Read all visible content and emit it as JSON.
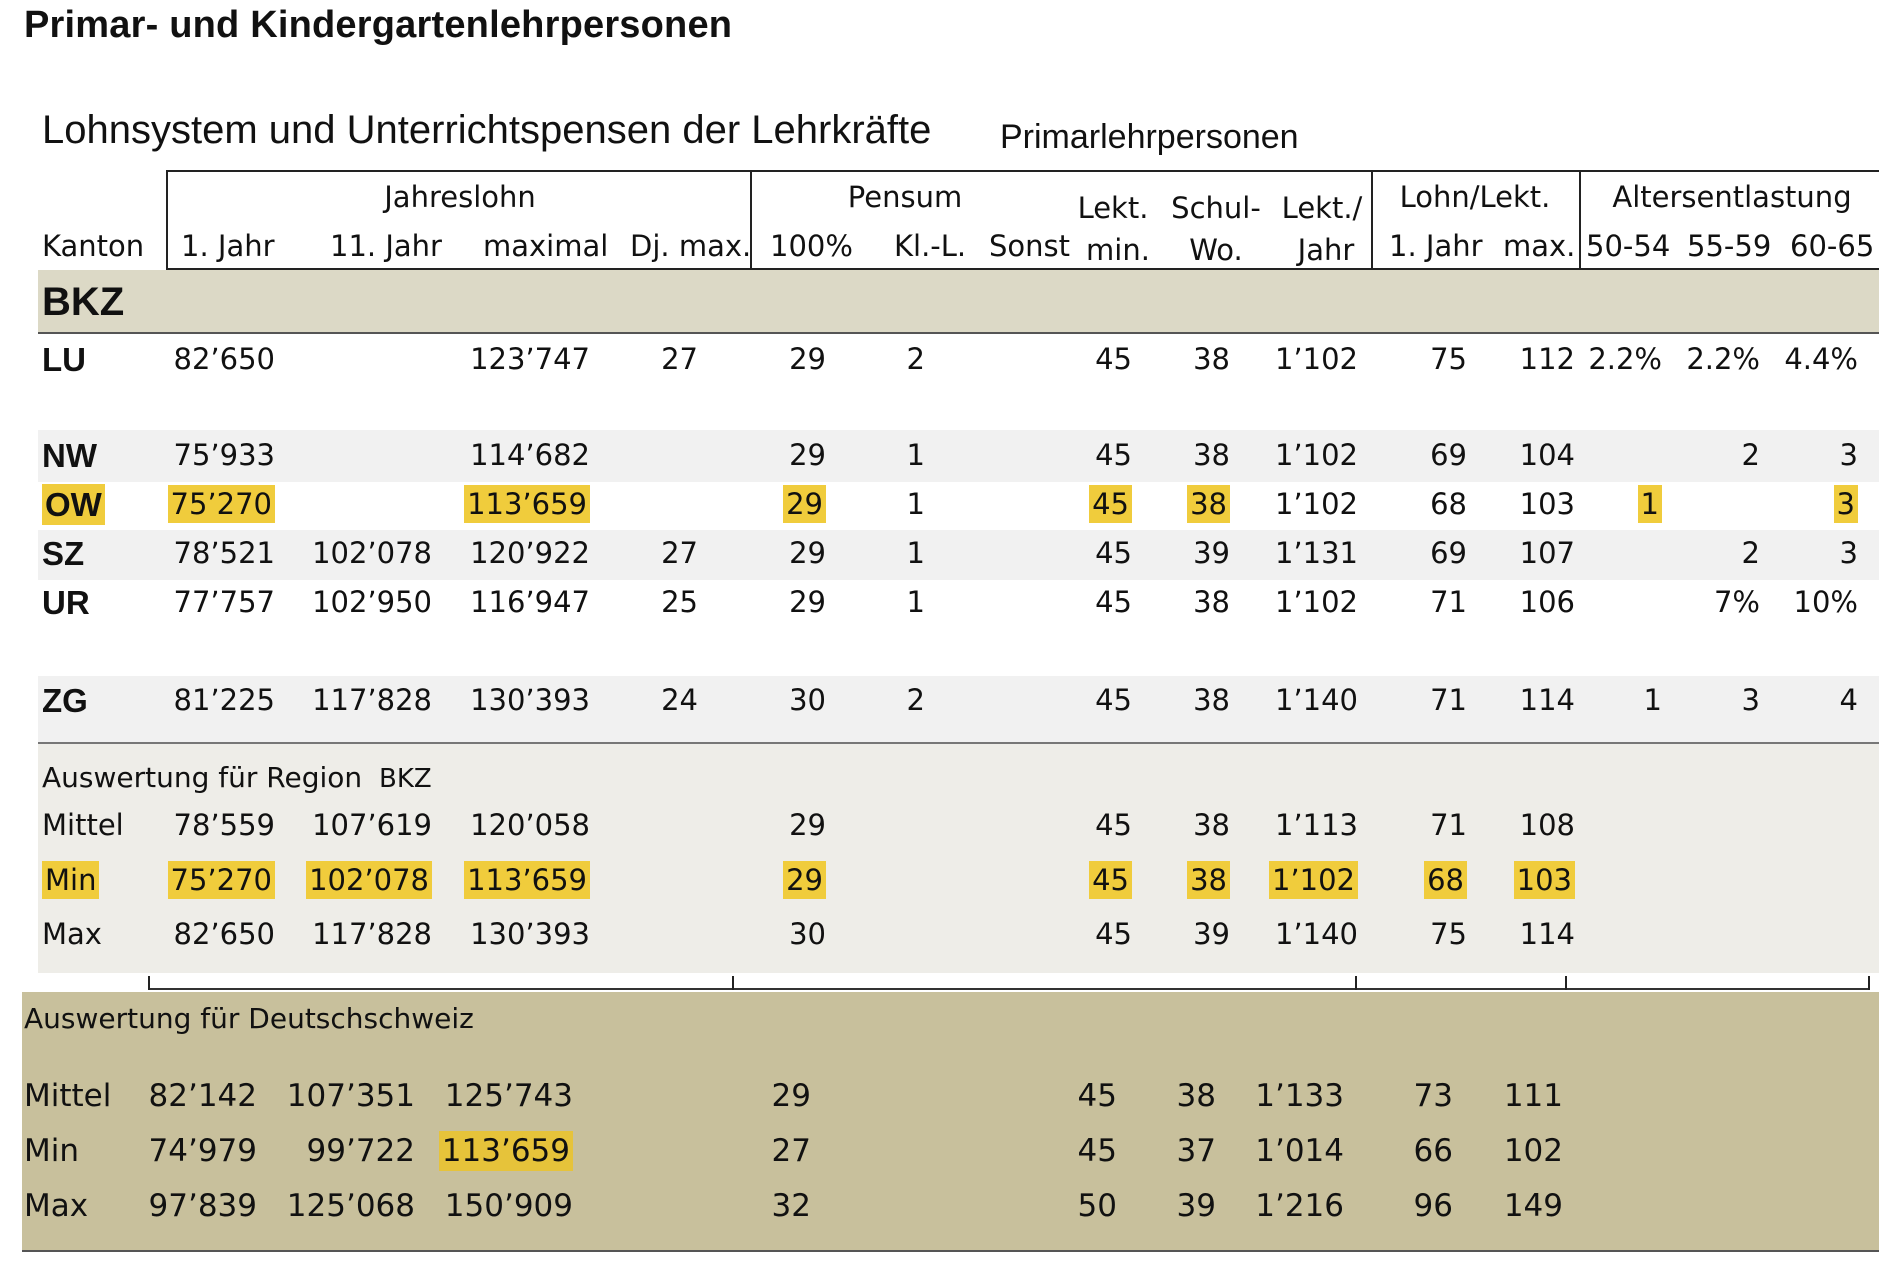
{
  "title": "Primar- und Kindergartenlehrpersonen",
  "subtitle": "Lohnsystem und Unterrichtspensen der Lehrkräfte",
  "subtitle2": "Primarlehrpersonen",
  "headers": {
    "group_jahreslohn": "Jahreslohn",
    "group_pensum": "Pensum",
    "group_lohn_lekt": "Lohn/Lekt.",
    "group_altersentlastung": "Altersentlastung",
    "kanton": "Kanton",
    "jahr1": "1. Jahr",
    "jahr11": "11. Jahr",
    "maximal": "maximal",
    "dj_max": "Dj. max.",
    "p100": "100%",
    "kl_l": "Kl.-L.",
    "sonst": "Sonst",
    "lekt_min_top": "Lekt.",
    "lekt_min_bottom": "min.",
    "schul_wo_top": "Schul-",
    "schul_wo_bottom": "Wo.",
    "lekt_jahr_top": "Lekt./",
    "lekt_jahr_bottom": "Jahr",
    "ll_jahr1": "1. Jahr",
    "ll_max": "max.",
    "a5054": "50-54",
    "a5559": "55-59",
    "a6065": "60-65"
  },
  "region_label": "BKZ",
  "rows": [
    {
      "kanton": "LU",
      "j1": "82’650",
      "j11": "",
      "max": "123’747",
      "dj": "27",
      "p100": "29",
      "kl": "2",
      "sonst": "",
      "lekt": "45",
      "wo": "38",
      "lj": "1’102",
      "l1": "75",
      "lmax": "112",
      "a1": "2.2%",
      "a2": "2.2%",
      "a3": "4.4%"
    },
    {
      "kanton": "NW",
      "j1": "75’933",
      "j11": "",
      "max": "114’682",
      "dj": "",
      "p100": "29",
      "kl": "1",
      "sonst": "",
      "lekt": "45",
      "wo": "38",
      "lj": "1’102",
      "l1": "69",
      "lmax": "104",
      "a1": "",
      "a2": "2",
      "a3": "3"
    },
    {
      "kanton": "OW",
      "j1": "75’270",
      "j11": "",
      "max": "113’659",
      "dj": "",
      "p100": "29",
      "kl": "1",
      "sonst": "",
      "lekt": "45",
      "wo": "38",
      "lj": "1’102",
      "l1": "68",
      "lmax": "103",
      "a1": "1",
      "a2": "",
      "a3": "3"
    },
    {
      "kanton": "SZ",
      "j1": "78’521",
      "j11": "102’078",
      "max": "120’922",
      "dj": "27",
      "p100": "29",
      "kl": "1",
      "sonst": "",
      "lekt": "45",
      "wo": "39",
      "lj": "1’131",
      "l1": "69",
      "lmax": "107",
      "a1": "",
      "a2": "2",
      "a3": "3"
    },
    {
      "kanton": "UR",
      "j1": "77’757",
      "j11": "102’950",
      "max": "116’947",
      "dj": "25",
      "p100": "29",
      "kl": "1",
      "sonst": "",
      "lekt": "45",
      "wo": "38",
      "lj": "1’102",
      "l1": "71",
      "lmax": "106",
      "a1": "",
      "a2": "7%",
      "a3": "10%"
    },
    {
      "kanton": "ZG",
      "j1": "81’225",
      "j11": "117’828",
      "max": "130’393",
      "dj": "24",
      "p100": "30",
      "kl": "2",
      "sonst": "",
      "lekt": "45",
      "wo": "38",
      "lj": "1’140",
      "l1": "71",
      "lmax": "114",
      "a1": "1",
      "a2": "3",
      "a3": "4"
    }
  ],
  "region_eval": {
    "title": "Auswertung für Region",
    "region": "BKZ",
    "rows": [
      {
        "label": "Mittel",
        "j1": "78’559",
        "j11": "107’619",
        "max": "120’058",
        "p100": "29",
        "lekt": "45",
        "wo": "38",
        "lj": "1’113",
        "l1": "71",
        "lmax": "108"
      },
      {
        "label": "Min",
        "j1": "75’270",
        "j11": "102’078",
        "max": "113’659",
        "p100": "29",
        "lekt": "45",
        "wo": "38",
        "lj": "1’102",
        "l1": "68",
        "lmax": "103"
      },
      {
        "label": "Max",
        "j1": "82’650",
        "j11": "117’828",
        "max": "130’393",
        "p100": "30",
        "lekt": "45",
        "wo": "39",
        "lj": "1’140",
        "l1": "75",
        "lmax": "114"
      }
    ]
  },
  "ds_eval": {
    "title": "Auswertung für Deutschschweiz",
    "rows": [
      {
        "label": "Mittel",
        "j1": "82’142",
        "j11": "107’351",
        "max": "125’743",
        "p100": "29",
        "lekt": "45",
        "wo": "38",
        "lj": "1’133",
        "l1": "73",
        "lmax": "111"
      },
      {
        "label": "Min",
        "j1": "74’979",
        "j11": "99’722",
        "max": "113’659",
        "p100": "27",
        "lekt": "45",
        "wo": "37",
        "lj": "1’014",
        "l1": "66",
        "lmax": "102"
      },
      {
        "label": "Max",
        "j1": "97’839",
        "j11": "125’068",
        "max": "150’909",
        "p100": "32",
        "lekt": "50",
        "wo": "39",
        "lj": "1’216",
        "l1": "96",
        "lmax": "149"
      }
    ]
  },
  "colors": {
    "highlight": "#f0cc3c",
    "band_gray": "#f1f1f1",
    "band_bkz": "#dcd9c6",
    "band_region": "#eeede8",
    "band_ds": "#c8c09c"
  }
}
